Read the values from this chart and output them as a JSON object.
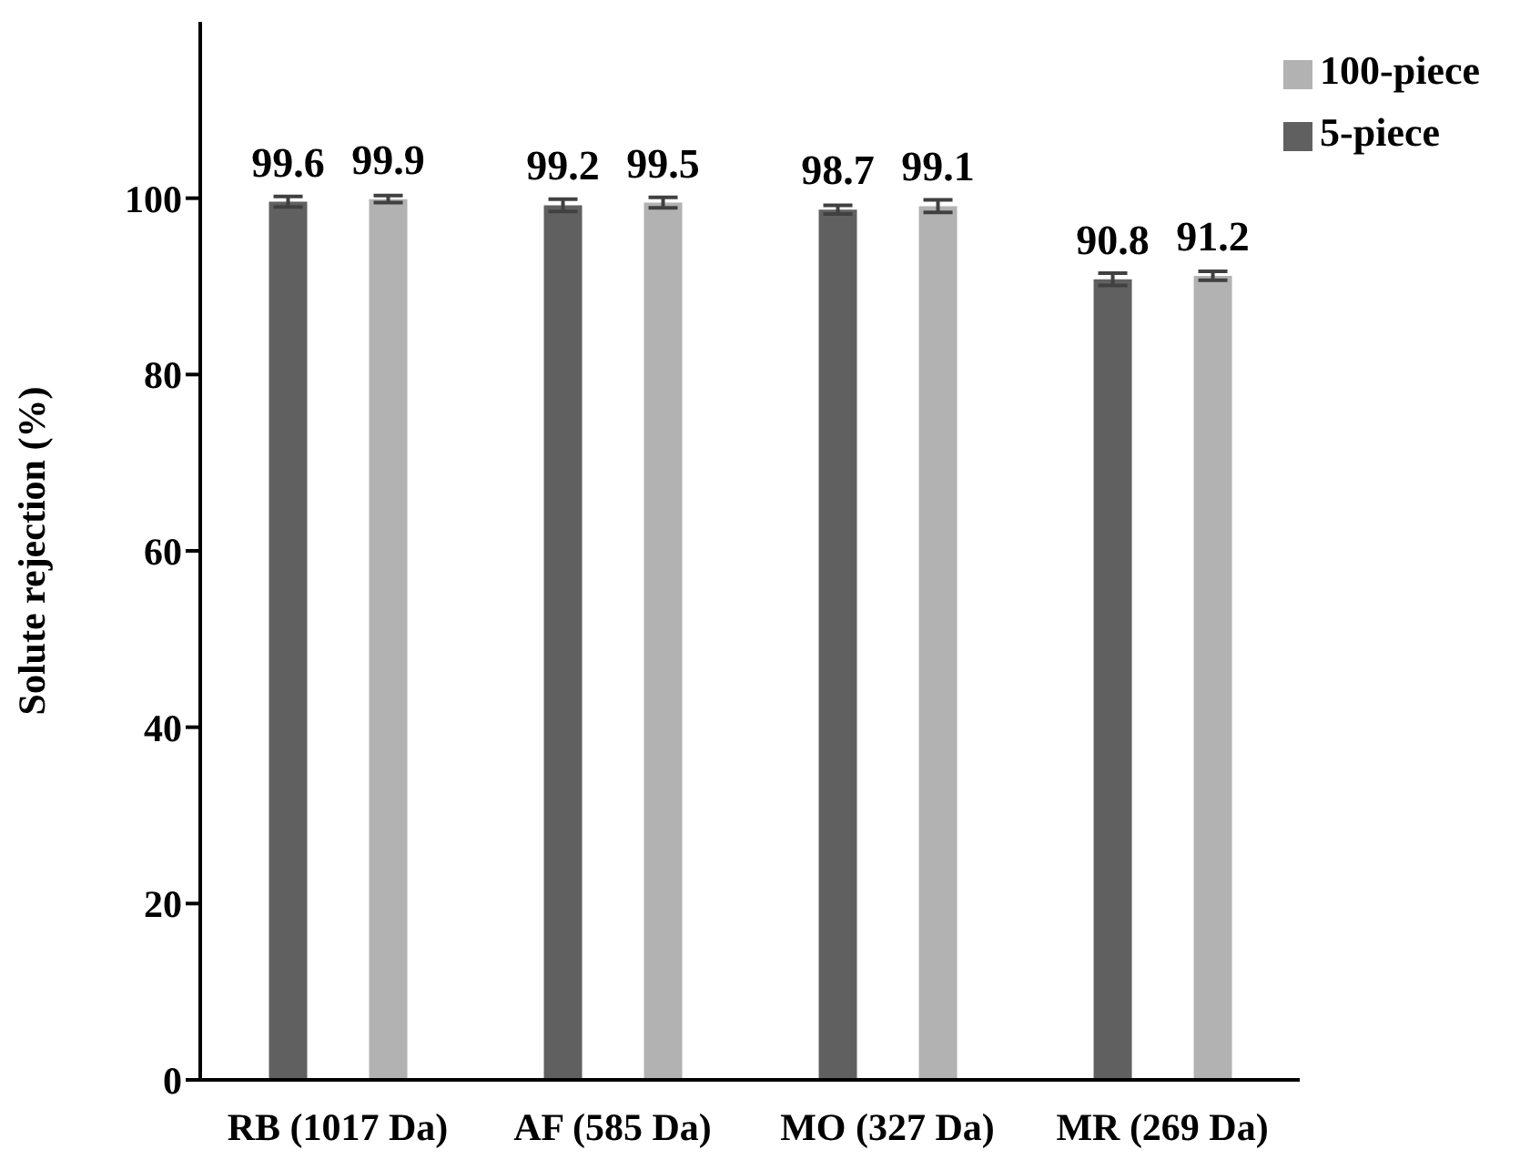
{
  "chart_data": {
    "type": "bar",
    "ylabel": "Solute rejection (%)",
    "categories": [
      "RB (1017 Da)",
      "AF (585 Da)",
      "MO (327 Da)",
      "MR (269 Da)"
    ],
    "series": [
      {
        "name": "5-piece",
        "color": "#606060",
        "values": [
          99.6,
          99.2,
          98.7,
          90.8
        ],
        "errors": [
          0.6,
          0.7,
          0.5,
          0.7
        ]
      },
      {
        "name": "100-piece",
        "color": "#b2b2b2",
        "values": [
          99.9,
          99.5,
          99.1,
          91.2
        ],
        "errors": [
          0.4,
          0.6,
          0.7,
          0.5
        ]
      }
    ],
    "ylim": [
      0,
      120
    ],
    "yticks": [
      0,
      20,
      40,
      60,
      80,
      100
    ],
    "grid": false,
    "legend": "top right",
    "data_labels": true
  }
}
